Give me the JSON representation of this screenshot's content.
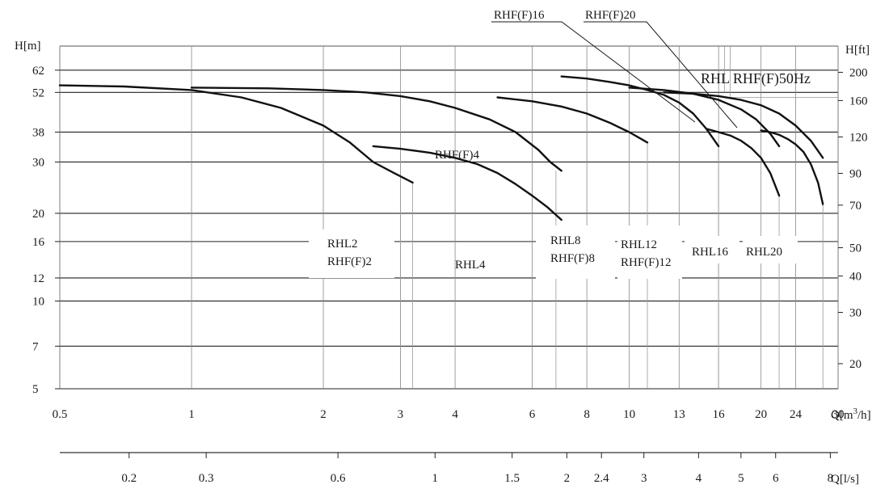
{
  "chart_data": {
    "type": "line",
    "title": "RHL RHF(F)50Hz",
    "ylabel_left": "H[m]",
    "ylabel_right": "H[ft]",
    "xlabel": "Q[m³/h]",
    "xlabel_unit_base": "Q[m",
    "xlabel_unit_sup": "3",
    "xlabel_unit_end": "/h]",
    "x2label": "Q[l/s]",
    "x_scale": "log",
    "y_scale": "log",
    "xlim": [
      0.5,
      30
    ],
    "ylim": [
      5,
      75
    ],
    "x_ticks": [
      0.5,
      1,
      2,
      3,
      4,
      6,
      8,
      10,
      13,
      16,
      20,
      24,
      30
    ],
    "x_tick_labels": [
      "0.5",
      "1",
      "2",
      "3",
      "4",
      "6",
      "8",
      "10",
      "13",
      "16",
      "20",
      "24",
      "30"
    ],
    "y_ticks": [
      5,
      7,
      10,
      12,
      16,
      20,
      30,
      38,
      52,
      62
    ],
    "y_tick_labels": [
      "5",
      "7",
      "10",
      "12",
      "16",
      "20",
      "30",
      "38",
      "52",
      "62"
    ],
    "y_right_ticks": [
      20,
      30,
      40,
      50,
      70,
      90,
      120,
      160,
      200
    ],
    "y_right_tick_labels": [
      "20",
      "30",
      "40",
      "50",
      "70",
      "90",
      "120",
      "160",
      "200"
    ],
    "x2_ticks": [
      0.2,
      0.3,
      0.6,
      1,
      1.5,
      2,
      2.4,
      3,
      4,
      5,
      6,
      8
    ],
    "x2_tick_labels": [
      "0.2",
      "0.3",
      "0.6",
      "1",
      "1.5",
      "2",
      "2.4",
      "3",
      "4",
      "5",
      "6",
      "8"
    ],
    "series": [
      {
        "name": "RHL2",
        "x": [
          0.5,
          0.7,
          1.0,
          1.3,
          1.6,
          2.0,
          2.3,
          2.6,
          2.9,
          3.2
        ],
        "y": [
          55,
          54.5,
          53,
          50,
          46,
          40,
          35,
          30,
          27.5,
          25.5
        ]
      },
      {
        "name": "RHF(F)2",
        "x": [
          1.0,
          1.5,
          2.0,
          2.5,
          3.0,
          3.5,
          4.0,
          4.8,
          5.5,
          6.2,
          6.6,
          7.0
        ],
        "y": [
          54,
          53.7,
          53,
          52,
          50.5,
          48.5,
          46,
          42,
          38,
          33,
          30,
          28
        ]
      },
      {
        "name": "RHF(F)4",
        "x": [
          2.6,
          3.0,
          3.5,
          4.0,
          4.5,
          5.0,
          5.5,
          6.0,
          6.5,
          7.0
        ],
        "y": [
          34,
          33.3,
          32.3,
          31,
          29.5,
          27.5,
          25.2,
          23,
          21,
          19
        ]
      },
      {
        "name": "RHL4",
        "x": [
          5.0,
          6.0,
          7.0,
          8.0,
          9.0,
          10.0,
          11.0
        ],
        "y": [
          50,
          48.5,
          46.5,
          44,
          41,
          38,
          35
        ]
      },
      {
        "name": "RHF(F)8",
        "x": [
          7.0,
          8.0,
          9.0,
          10.0,
          11.0,
          12.0,
          13.0,
          14.0,
          15.0,
          16.0
        ],
        "y": [
          59,
          58,
          56.5,
          55,
          53,
          51,
          48,
          44,
          39,
          34
        ]
      },
      {
        "name": "RHF(F)12",
        "x": [
          15.0,
          16.0,
          17.0,
          18.0,
          19.0,
          20.0,
          21.0,
          22.0
        ],
        "y": [
          39,
          38,
          37,
          35.5,
          33.5,
          31,
          27.5,
          23
        ]
      },
      {
        "name": "RHF(F)16",
        "x": [
          10.0,
          12.0,
          14.0,
          16.0,
          18.0,
          19.5,
          21.0,
          22.0
        ],
        "y": [
          54,
          53,
          51.5,
          49,
          45.5,
          42,
          37.5,
          34
        ]
      },
      {
        "name": "RHL16",
        "x": [
          20.0,
          21.0,
          22.0,
          23.0,
          24.0,
          25.0,
          26.0,
          27.0,
          27.7
        ],
        "y": [
          38.5,
          38,
          37.2,
          36,
          34.5,
          32.5,
          29.5,
          25.5,
          21.5
        ]
      },
      {
        "name": "RHF(F)20",
        "x": [
          12.0,
          14.0,
          16.0,
          18.0,
          20.0,
          22.0,
          24.0,
          26.0,
          27.7
        ],
        "y": [
          52,
          51.5,
          50.5,
          49,
          47,
          44,
          40,
          35.5,
          31
        ]
      }
    ],
    "regions": [
      {
        "lines": [
          "RHL2",
          "RHF(F)2"
        ]
      },
      {
        "lines": [
          "RHL4"
        ]
      },
      {
        "lines": [
          "RHL8",
          "RHF(F)8"
        ]
      },
      {
        "lines": [
          "RHL12",
          "RHF(F)12"
        ]
      },
      {
        "lines": [
          "RHL16"
        ]
      },
      {
        "lines": [
          "RHL20"
        ]
      }
    ],
    "curve_labels": [
      "RHF(F)4",
      "RHF(F)16",
      "RHF(F)20"
    ],
    "grid": true
  }
}
